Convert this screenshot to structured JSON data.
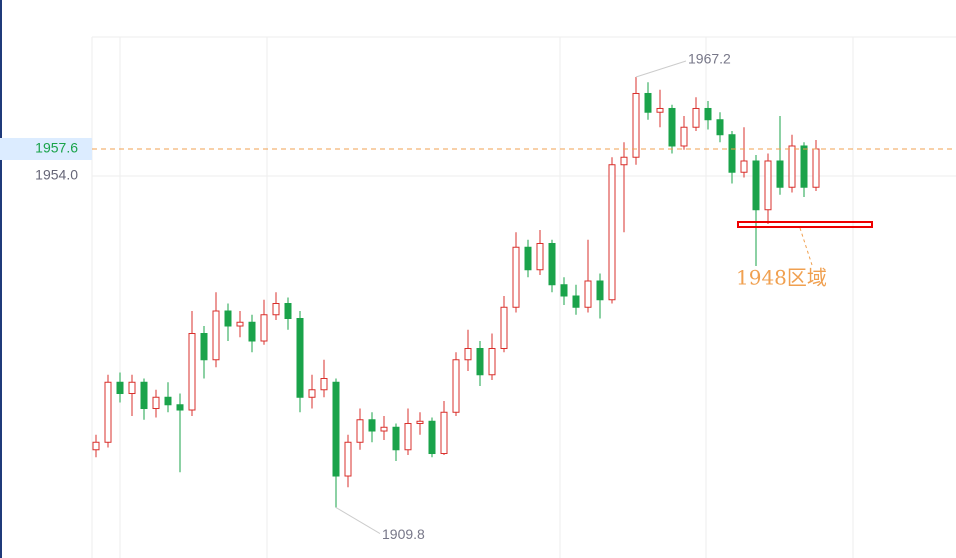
{
  "chart_data": {
    "type": "candlestick",
    "open": [
      1917.5,
      1918.5,
      1926.5,
      1925,
      1926.5,
      1923,
      1924.5,
      1923.5,
      1922.8,
      1933,
      1929.5,
      1936,
      1934,
      1934.5,
      1932,
      1935.5,
      1937,
      1935,
      1924.5,
      1925.5,
      1926.5,
      1914,
      1918.5,
      1921.5,
      1920,
      1920.5,
      1917.5,
      1921,
      1921.3,
      1917,
      1922.5,
      1929.5,
      1931,
      1927.5,
      1931,
      1936.5,
      1944.5,
      1941.5,
      1945,
      1939.5,
      1938,
      1936.5,
      1940,
      1937.5,
      1955.5,
      1956.5,
      1965,
      1962.5,
      1963,
      1958,
      1960.5,
      1963,
      1961.5,
      1959.5,
      1954.5,
      1956,
      1949.5,
      1956,
      1952.5,
      1958,
      1952.5
    ],
    "high": [
      1919.5,
      1927.5,
      1927.8,
      1927.5,
      1927,
      1925.5,
      1926.5,
      1925,
      1936,
      1934,
      1938.5,
      1937,
      1936,
      1935.5,
      1937.5,
      1938.5,
      1937.8,
      1936,
      1927.5,
      1929.5,
      1927,
      1919.5,
      1923,
      1922.5,
      1922,
      1921,
      1923,
      1922.5,
      1921.8,
      1924,
      1930.5,
      1933.5,
      1932,
      1933,
      1938,
      1946.5,
      1945.5,
      1946.8,
      1945.5,
      1940.5,
      1939.5,
      1945.5,
      1941,
      1956.5,
      1958.5,
      1967.2,
      1966.5,
      1965.5,
      1963.5,
      1962,
      1964.5,
      1964,
      1962.5,
      1960,
      1960.5,
      1956.8,
      1957,
      1962,
      1959.5,
      1958.5,
      1958.8
    ],
    "low": [
      1916.5,
      1917.8,
      1923.8,
      1922,
      1921.5,
      1921.8,
      1922.5,
      1914.5,
      1922,
      1927,
      1928.5,
      1932,
      1932.5,
      1930.5,
      1931.5,
      1934.8,
      1933.5,
      1922.5,
      1923,
      1924.5,
      1909.8,
      1912.5,
      1917.5,
      1918.5,
      1918.8,
      1916,
      1916.8,
      1919.5,
      1916.5,
      1916.8,
      1922,
      1928,
      1926,
      1926.8,
      1930.5,
      1935.8,
      1940.5,
      1940.8,
      1938.5,
      1936.8,
      1935.5,
      1935.8,
      1935,
      1937,
      1946.5,
      1955.5,
      1961.5,
      1960.5,
      1957,
      1957.5,
      1960,
      1960.2,
      1958.5,
      1953,
      1953.8,
      1942,
      1947.6,
      1951.5,
      1951.8,
      1951.2,
      1952
    ],
    "close": [
      1918.5,
      1926.5,
      1925,
      1926.5,
      1923,
      1924.5,
      1923.5,
      1922.8,
      1933,
      1929.5,
      1936,
      1934,
      1934.5,
      1932,
      1935.5,
      1937,
      1935,
      1924.5,
      1925.5,
      1927,
      1914,
      1918.5,
      1921.5,
      1920,
      1920.5,
      1917.5,
      1921,
      1921.3,
      1917,
      1922.5,
      1929.5,
      1931,
      1927.5,
      1931,
      1936.5,
      1944.5,
      1941.5,
      1945,
      1939.5,
      1938,
      1936.5,
      1940,
      1937.5,
      1955.5,
      1956.5,
      1965,
      1962.5,
      1963,
      1958,
      1960.5,
      1963,
      1961.5,
      1959.5,
      1954.5,
      1956,
      1949.5,
      1956,
      1952.5,
      1958,
      1952.5,
      1957.6
    ],
    "up_color": "#d9302c",
    "down_color": "#1aa34a",
    "ylim": [
      1903.07,
      1972.53
    ],
    "yticks": [
      {
        "value": 1954,
        "label": "1954.0"
      }
    ],
    "annotation": "1948区域"
  }
}
